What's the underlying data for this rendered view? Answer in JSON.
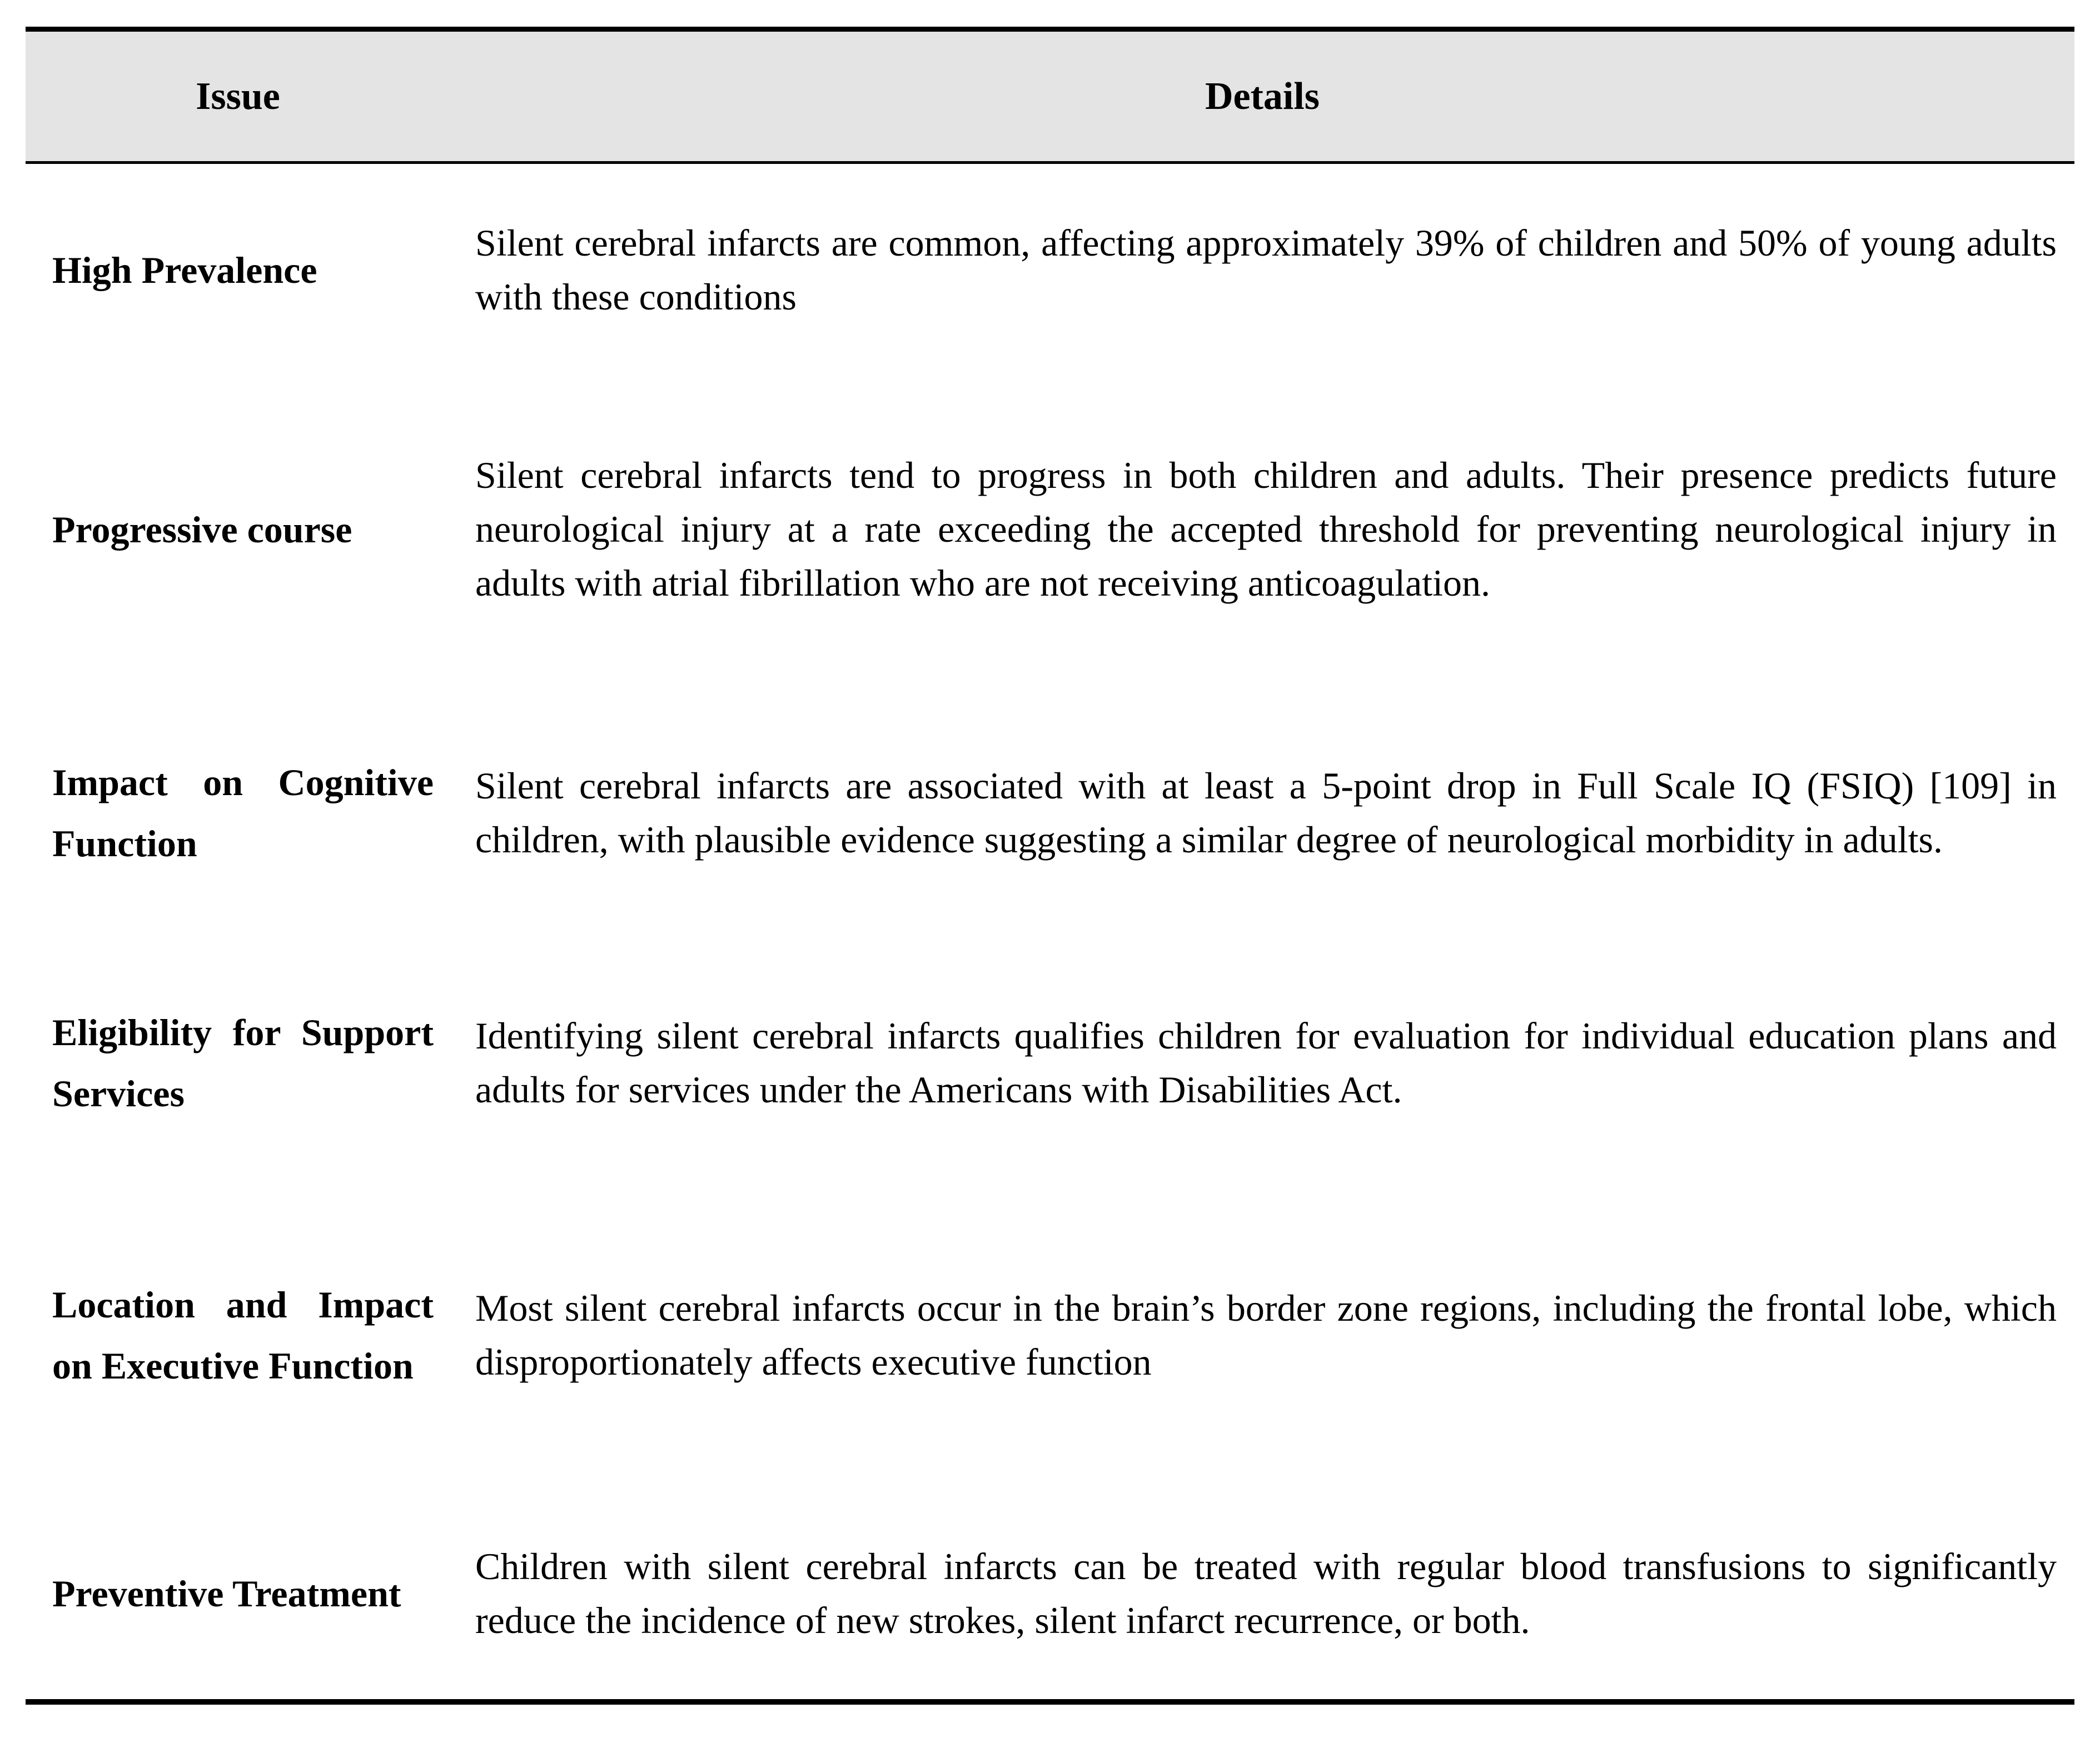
{
  "table": {
    "columns": [
      "Issue",
      "Details"
    ],
    "rows": [
      {
        "issue": "High Prevalence",
        "details": "Silent cerebral infarcts are common, affecting approximately 39% of children and 50% of young adults with these conditions"
      },
      {
        "issue": "Progressive course",
        "details": "Silent cerebral infarcts tend to progress in both children and adults. Their presence predicts future neurological injury at a rate exceeding the accepted threshold for preventing neurological injury in adults with atrial fibrillation who are not receiving anticoagulation."
      },
      {
        "issue": "Impact on Cognitive Function",
        "details": "Silent cerebral infarcts are associated with at least a 5-point drop in Full Scale IQ (FSIQ) [109] in children, with plausible evidence suggesting a similar degree of neurological morbidity in adults."
      },
      {
        "issue": "Eligibility for Support Services",
        "details": "Identifying silent cerebral infarcts qualifies children for evaluation for individual education plans and adults for services under the Americans with Disabilities Act."
      },
      {
        "issue": "Location and Impact on Executive Function",
        "details": "Most silent cerebral infarcts occur in the brain’s border zone regions, including the frontal lobe, which disproportionately affects executive function"
      },
      {
        "issue": "Preventive Treatment",
        "details": "Children with silent cerebral infarcts can be treated with regular blood transfusions to significantly reduce the incidence of new strokes, silent infarct recurrence, or both."
      }
    ],
    "colors": {
      "header_bg": "#e4e4e4",
      "border": "#000000",
      "text": "#000000"
    }
  }
}
